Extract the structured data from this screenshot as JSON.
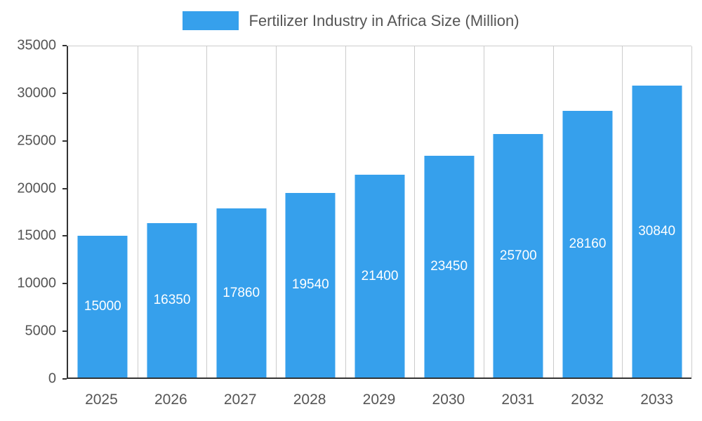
{
  "legend": {
    "title": "Fertilizer Industry in Africa Size (Million)"
  },
  "chart_data": {
    "type": "bar",
    "title": "Fertilizer Industry in Africa Size (Million)",
    "categories": [
      "2025",
      "2026",
      "2027",
      "2028",
      "2029",
      "2030",
      "2031",
      "2032",
      "2033"
    ],
    "values": [
      15000,
      16350,
      17860,
      19540,
      21400,
      23450,
      25700,
      28160,
      30840
    ],
    "xlabel": "",
    "ylabel": "",
    "ylim": [
      0,
      35000
    ],
    "yticks": [
      0,
      5000,
      10000,
      15000,
      20000,
      25000,
      30000,
      35000
    ],
    "grid": "vertical",
    "legend_position": "top",
    "bar_color": "#36A0EC",
    "label_color": "#ffffff",
    "axis_text_color": "#555555"
  }
}
